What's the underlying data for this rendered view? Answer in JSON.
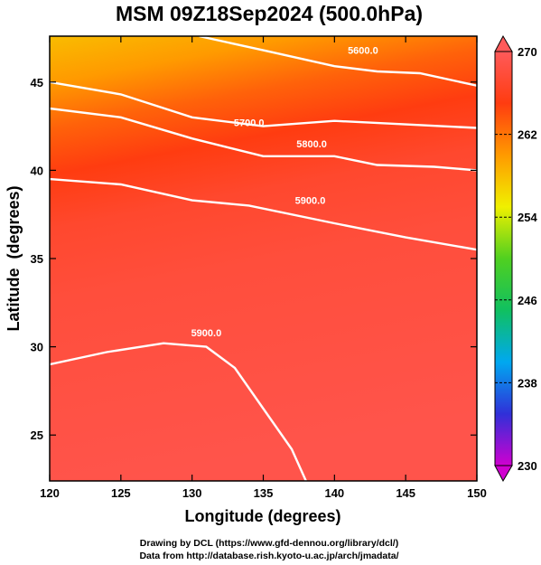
{
  "chart_data": {
    "type": "heatmap",
    "title": "MSM 09Z18Sep2024 (500.0hPa)",
    "xlabel": "Longitude (degrees)",
    "ylabel": "Latitude  (degrees)",
    "xlim": [
      120,
      150
    ],
    "ylim": [
      22.4,
      47.6
    ],
    "xticks": [
      120,
      125,
      130,
      135,
      140,
      145,
      150
    ],
    "yticks": [
      25,
      30,
      35,
      40,
      45
    ],
    "colorbar": {
      "min": 230,
      "max": 270,
      "ticks": [
        230,
        238,
        246,
        254,
        262,
        270
      ],
      "colors": [
        "#d000d0",
        "#3030d8",
        "#00a8f0",
        "#10c060",
        "#50d020",
        "#f0f000",
        "#ff9a00",
        "#ff3c10",
        "#ff5a5a"
      ]
    },
    "temperature_field_by_latitude": [
      {
        "lat": 47.6,
        "temp": 258
      },
      {
        "lat": 45.0,
        "temp": 260
      },
      {
        "lat": 42.5,
        "temp": 263
      },
      {
        "lat": 40.0,
        "temp": 265
      },
      {
        "lat": 37.0,
        "temp": 267
      },
      {
        "lat": 33.0,
        "temp": 268
      },
      {
        "lat": 22.4,
        "temp": 269
      }
    ],
    "contours": [
      {
        "label": "5600.0",
        "points": [
          [
            130.5,
            47.6
          ],
          [
            135,
            46.8
          ],
          [
            140,
            45.9
          ],
          [
            143,
            45.6
          ],
          [
            146,
            45.5
          ],
          [
            150,
            44.8
          ]
        ]
      },
      {
        "label": "5700.0",
        "points": [
          [
            120,
            45.0
          ],
          [
            125,
            44.3
          ],
          [
            130,
            43.0
          ],
          [
            135,
            42.5
          ],
          [
            140,
            42.8
          ],
          [
            145,
            42.6
          ],
          [
            150,
            42.4
          ]
        ]
      },
      {
        "label": "5800.0",
        "points": [
          [
            120,
            43.5
          ],
          [
            125,
            43.0
          ],
          [
            130,
            41.8
          ],
          [
            135,
            40.8
          ],
          [
            140,
            40.8
          ],
          [
            143,
            40.3
          ],
          [
            147,
            40.2
          ],
          [
            150,
            40.0
          ]
        ]
      },
      {
        "label": "5900.0",
        "points": [
          [
            120,
            39.5
          ],
          [
            125,
            39.2
          ],
          [
            130,
            38.3
          ],
          [
            134,
            38.0
          ],
          [
            140,
            37.0
          ],
          [
            145,
            36.2
          ],
          [
            150,
            35.5
          ]
        ]
      },
      {
        "label": "5900.0",
        "points": [
          [
            120,
            29.0
          ],
          [
            124,
            29.7
          ],
          [
            128,
            30.2
          ],
          [
            131,
            30.0
          ],
          [
            133,
            28.8
          ],
          [
            135,
            26.5
          ],
          [
            137,
            24.2
          ],
          [
            138,
            22.4
          ]
        ]
      }
    ],
    "contour_labels": [
      {
        "text": "5600.0",
        "lon": 142.0,
        "lat": 46.6
      },
      {
        "text": "5700.0",
        "lon": 134.0,
        "lat": 42.5
      },
      {
        "text": "5800.0",
        "lon": 138.4,
        "lat": 41.3
      },
      {
        "text": "5900.0",
        "lon": 138.3,
        "lat": 38.1
      },
      {
        "text": "5900.0",
        "lon": 131.0,
        "lat": 30.6
      }
    ]
  },
  "credits": {
    "line1": "Drawing by DCL (https://www.gfd-dennou.org/library/dcl/)",
    "line2": "Data from http://database.rish.kyoto-u.ac.jp/arch/jmadata/"
  }
}
